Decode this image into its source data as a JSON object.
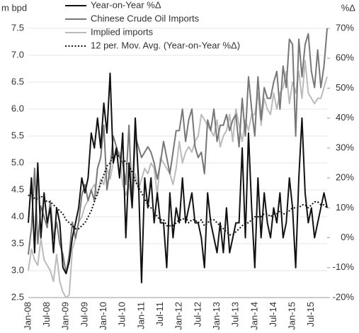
{
  "chart_data": {
    "type": "line",
    "y_label": "m bpd",
    "y2_label": "%Δ",
    "categories": [
      "Jan-08",
      null,
      null,
      null,
      null,
      null,
      "Jul-08",
      null,
      null,
      null,
      null,
      null,
      "Jan-09",
      null,
      null,
      null,
      null,
      null,
      "Jul-09",
      null,
      null,
      null,
      null,
      null,
      "Jan-10",
      null,
      null,
      null,
      null,
      null,
      "Jul-10",
      null,
      null,
      null,
      null,
      null,
      "Jan-11",
      null,
      null,
      null,
      null,
      null,
      "Jul-11",
      null,
      null,
      null,
      null,
      null,
      "Jan-12",
      null,
      null,
      null,
      null,
      null,
      "Jul-12",
      null,
      null,
      null,
      null,
      null,
      "Jan-13",
      null,
      null,
      null,
      null,
      null,
      "Jul-13",
      null,
      null,
      null,
      null,
      null,
      "Jan-14",
      null,
      null,
      null,
      null,
      null,
      "Jul-14",
      null,
      null,
      null,
      null,
      null,
      "Jan-15",
      null,
      null,
      null,
      null,
      null,
      "Jul-15",
      null,
      null,
      null,
      null,
      null
    ],
    "series": [
      {
        "name": "Year-on-Year %Δ",
        "color": "#111111",
        "width": 2,
        "style": "solid",
        "axis": "y2",
        "values": [
          5,
          20,
          -5,
          25,
          0,
          15,
          5,
          10,
          -5,
          10,
          5,
          -10,
          -12,
          -8,
          0,
          5,
          10,
          20,
          15,
          20,
          35,
          30,
          40,
          30,
          45,
          35,
          55,
          25,
          30,
          20,
          35,
          0,
          25,
          10,
          40,
          20,
          -15,
          20,
          10,
          20,
          5,
          15,
          5,
          5,
          -10,
          15,
          0,
          10,
          5,
          20,
          5,
          10,
          15,
          5,
          5,
          0,
          -10,
          15,
          5,
          0,
          -5,
          5,
          -5,
          10,
          -5,
          0,
          5,
          5,
          30,
          0,
          35,
          10,
          -10,
          20,
          0,
          15,
          5,
          0,
          10,
          5,
          15,
          0,
          5,
          20,
          10,
          -10,
          20,
          40,
          15,
          5,
          10,
          0,
          5,
          10,
          15,
          10
        ]
      },
      {
        "name": "Chinese Crude Oil Imports",
        "color": "#777777",
        "width": 2,
        "style": "solid",
        "axis": "y",
        "values": [
          3.3,
          3.8,
          4.9,
          3.5,
          4.2,
          4.0,
          3.8,
          4.3,
          3.6,
          3.9,
          3.5,
          3.3,
          2.95,
          3.3,
          3.9,
          3.6,
          3.9,
          4.4,
          4.6,
          4.3,
          4.5,
          4.3,
          4.9,
          5.1,
          5.7,
          4.5,
          4.9,
          5.5,
          5.3,
          5.1,
          5.0,
          4.6,
          5.7,
          4.2,
          5.5,
          5.3,
          5.1,
          5.2,
          5.3,
          5.2,
          5.0,
          4.7,
          5.0,
          5.4,
          5.1,
          4.8,
          5.2,
          5.6,
          5.6,
          6.0,
          5.4,
          5.8,
          6.0,
          5.3,
          5.1,
          5.2,
          4.8,
          5.8,
          5.6,
          6.0,
          5.4,
          5.7,
          5.7,
          5.9,
          5.6,
          5.8,
          5.9,
          5.3,
          6.2,
          5.5,
          6.6,
          6.0,
          5.5,
          6.6,
          5.8,
          6.4,
          6.2,
          6.2,
          6.5,
          6.7,
          6.0,
          6.8,
          6.4,
          7.3,
          7.2,
          5.5,
          7.3,
          6.6,
          7.2,
          7.4,
          6.7,
          6.4,
          7.1,
          6.4,
          6.8,
          7.5
        ]
      },
      {
        "name": "Implied imports",
        "color": "#bbbbbb",
        "width": 2,
        "style": "solid",
        "axis": "y",
        "values": [
          3.0,
          3.4,
          3.2,
          3.1,
          3.6,
          3.2,
          3.1,
          3.0,
          2.8,
          3.3,
          2.8,
          2.6,
          2.5,
          2.55,
          3.4,
          3.6,
          3.9,
          4.0,
          4.2,
          4.3,
          4.5,
          4.6,
          4.4,
          4.7,
          4.6,
          4.9,
          4.7,
          5.0,
          5.2,
          5.2,
          4.6,
          4.4,
          4.6,
          4.2,
          4.8,
          4.5,
          4.7,
          4.9,
          4.8,
          5.0,
          4.9,
          4.4,
          5.1,
          5.0,
          4.9,
          4.8,
          4.6,
          4.9,
          5.4,
          5.0,
          5.2,
          5.3,
          5.2,
          5.4,
          5.5,
          5.9,
          5.8,
          5.7,
          5.6,
          5.5,
          5.8,
          5.3,
          5.5,
          5.6,
          5.9,
          5.4,
          6.0,
          5.7,
          5.4,
          5.8,
          5.6,
          5.9,
          5.9,
          6.3,
          5.7,
          6.2,
          6.0,
          5.9,
          6.3,
          6.0,
          6.3,
          6.4,
          6.7,
          6.1,
          6.5,
          6.3,
          6.7,
          6.2,
          6.9,
          6.3,
          6.2,
          6.1,
          6.2,
          6.2,
          6.4,
          6.6
        ]
      },
      {
        "name": "12 per. Mov. Avg. (Year-on-Year %Δ)",
        "color": "#111111",
        "width": 2,
        "style": "dotted",
        "axis": "y2",
        "values": [
          14,
          15,
          13,
          13,
          14,
          13,
          12,
          12,
          11,
          10,
          9,
          8,
          6,
          5,
          4,
          3,
          3,
          4,
          5,
          7,
          9,
          12,
          15,
          18,
          21,
          24,
          25,
          28,
          28,
          27,
          27,
          25,
          24,
          22,
          19,
          17,
          15,
          13,
          11,
          10,
          9,
          7,
          6,
          6,
          4,
          4,
          4,
          5,
          6,
          6,
          7,
          5,
          6,
          6,
          5,
          6,
          4,
          5,
          6,
          6,
          5,
          4,
          3,
          2,
          1,
          1,
          2,
          3,
          4,
          5,
          5,
          6,
          7,
          7,
          7,
          8,
          8,
          7,
          8,
          8,
          9,
          8,
          8,
          9,
          10,
          10,
          10,
          11,
          11,
          10,
          11,
          12,
          12,
          11,
          11,
          10
        ]
      }
    ],
    "ylim": [
      2.5,
      7.5
    ],
    "yticks": [
      2.5,
      {
        "value": 3,
        "label": "3.0"
      },
      3.5,
      {
        "value": 4,
        "label": "4.0"
      },
      4.5,
      {
        "value": 5,
        "label": "5.0"
      },
      5.5,
      {
        "value": 6,
        "label": "6.0"
      },
      6.5,
      {
        "value": 7,
        "label": "7.0"
      },
      7.5
    ],
    "y2lim": [
      -20,
      70
    ],
    "y2ticks": [
      {
        "value": -20,
        "label": "-20%"
      },
      {
        "value": -10,
        "label": "-10%"
      },
      {
        "value": 0,
        "label": "0%"
      },
      {
        "value": 10,
        "label": "10%"
      },
      {
        "value": 20,
        "label": "20%"
      },
      {
        "value": 30,
        "label": "30%"
      },
      {
        "value": 40,
        "label": "40%"
      },
      {
        "value": 50,
        "label": "50%"
      },
      {
        "value": 60,
        "label": "60%"
      },
      {
        "value": 70,
        "label": "70%"
      }
    ],
    "grid": true,
    "legend": "top-left"
  }
}
